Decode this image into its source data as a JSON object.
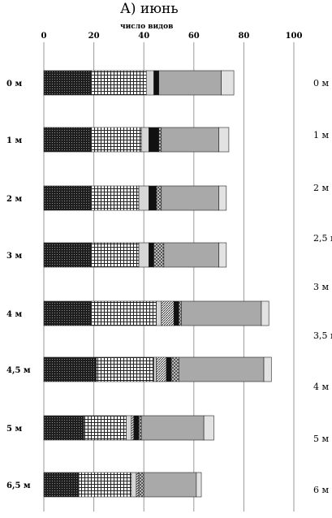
{
  "chart_data": {
    "type": "bar",
    "orientation": "horizontal",
    "stacked": true,
    "title": "А) июнь",
    "xlabel": "число видов",
    "xlim": [
      0,
      100
    ],
    "xticks": [
      0,
      20,
      40,
      60,
      80,
      100
    ],
    "grid": true,
    "categories": [
      "0 м",
      "1 м",
      "2 м",
      "3 м",
      "4 м",
      "4,5 м",
      "5 м",
      "6,5 м"
    ],
    "series": [
      {
        "fill": "dense-dots",
        "values": [
          19,
          19,
          19,
          19,
          19,
          21,
          16,
          14
        ]
      },
      {
        "fill": "grid",
        "values": [
          22,
          20,
          19,
          19,
          26,
          23,
          17,
          21
        ]
      },
      {
        "fill": "light-gray",
        "values": [
          3,
          3,
          4,
          4,
          2,
          1,
          2,
          2
        ]
      },
      {
        "fill": "diagonal",
        "values": [
          0,
          0,
          0,
          0,
          5,
          4,
          1,
          1
        ]
      },
      {
        "fill": "black",
        "values": [
          2,
          4,
          3,
          2,
          2,
          2,
          2,
          0
        ]
      },
      {
        "fill": "checker",
        "values": [
          0,
          1,
          2,
          4,
          1,
          3,
          1,
          2
        ]
      },
      {
        "fill": "gray",
        "values": [
          25,
          23,
          23,
          22,
          32,
          34,
          25,
          21
        ]
      },
      {
        "fill": "white-gray",
        "values": [
          5,
          4,
          3,
          3,
          3,
          3,
          4,
          2
        ]
      }
    ]
  },
  "right_labels": [
    "0 м",
    "1 м",
    "2 м",
    "2,5 м",
    "3 м",
    "3,5 м",
    "4 м",
    "5 м",
    "6 м"
  ]
}
